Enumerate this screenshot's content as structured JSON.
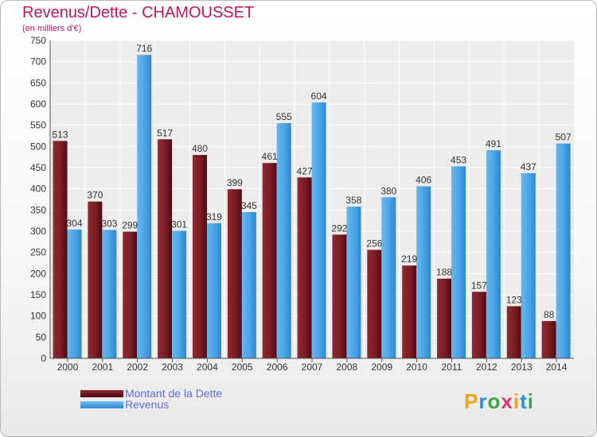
{
  "header": {
    "title": "Revenus/Dette - CHAMOUSSET",
    "subtitle": "(en milliers d'€)"
  },
  "chart_data": {
    "type": "bar",
    "title": "Revenus/Dette - CHAMOUSSET",
    "ylabel": "(en milliers d'€)",
    "xlabel": "",
    "ylim": [
      0,
      750
    ],
    "ytick_step": 50,
    "grid": true,
    "categories": [
      "2000",
      "2001",
      "2002",
      "2003",
      "2004",
      "2005",
      "2006",
      "2007",
      "2008",
      "2009",
      "2010",
      "2011",
      "2012",
      "2013",
      "2014"
    ],
    "series": [
      {
        "name": "Montant de la Dette",
        "color": "#8b1a24",
        "values": [
          513,
          370,
          299,
          517,
          480,
          399,
          461,
          427,
          292,
          256,
          219,
          188,
          157,
          123,
          88
        ]
      },
      {
        "name": "Revenus",
        "color": "#4aa3e6",
        "values": [
          304,
          303,
          716,
          301,
          319,
          345,
          555,
          604,
          358,
          380,
          406,
          453,
          491,
          437,
          507
        ]
      }
    ]
  },
  "legend": {
    "items": [
      {
        "label": "Montant de la Dette",
        "color": "#6b0f16"
      },
      {
        "label": "Revenus",
        "color": "#3f9be3"
      }
    ]
  },
  "logo": {
    "letters": [
      "P",
      "r",
      "o",
      "x",
      "i",
      "t",
      "i"
    ],
    "colors": [
      "#f2a21b",
      "#2f8fd8",
      "#3aa845",
      "#e5336d",
      "#f2a21b",
      "#2f8fd8",
      "#3aa845"
    ]
  }
}
